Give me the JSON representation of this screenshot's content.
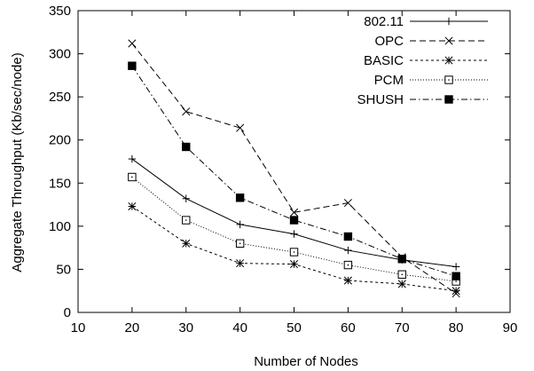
{
  "chart_data": {
    "type": "line",
    "title": "",
    "xlabel": "Number of Nodes",
    "ylabel": "Aggregate Throughput (Kb/sec/node)",
    "xlim": [
      10,
      90
    ],
    "ylim": [
      0,
      350
    ],
    "xticks": [
      "10",
      "20",
      "30",
      "40",
      "50",
      "60",
      "70",
      "80",
      "90"
    ],
    "yticks": [
      "0",
      "50",
      "100",
      "150",
      "200",
      "250",
      "300",
      "350"
    ],
    "grid": false,
    "legend_position": "top-right",
    "x": [
      20,
      30,
      40,
      50,
      60,
      70,
      80
    ],
    "series": [
      {
        "name": "802.11",
        "values": [
          178,
          132,
          102,
          91,
          72,
          61,
          53
        ],
        "marker": "plus",
        "dash": "solid"
      },
      {
        "name": "OPC",
        "values": [
          312,
          233,
          214,
          116,
          127,
          64,
          22
        ],
        "marker": "cross",
        "dash": "dashed"
      },
      {
        "name": "BASIC",
        "values": [
          123,
          80,
          57,
          56,
          37,
          33,
          25
        ],
        "marker": "star",
        "dash": "short-dashed"
      },
      {
        "name": "PCM",
        "values": [
          157,
          107,
          80,
          70,
          55,
          44,
          36
        ],
        "marker": "open-square",
        "dash": "dotted"
      },
      {
        "name": "SHUSH",
        "values": [
          286,
          192,
          133,
          107,
          88,
          62,
          42
        ],
        "marker": "filled-square",
        "dash": "dash-dot"
      }
    ]
  }
}
